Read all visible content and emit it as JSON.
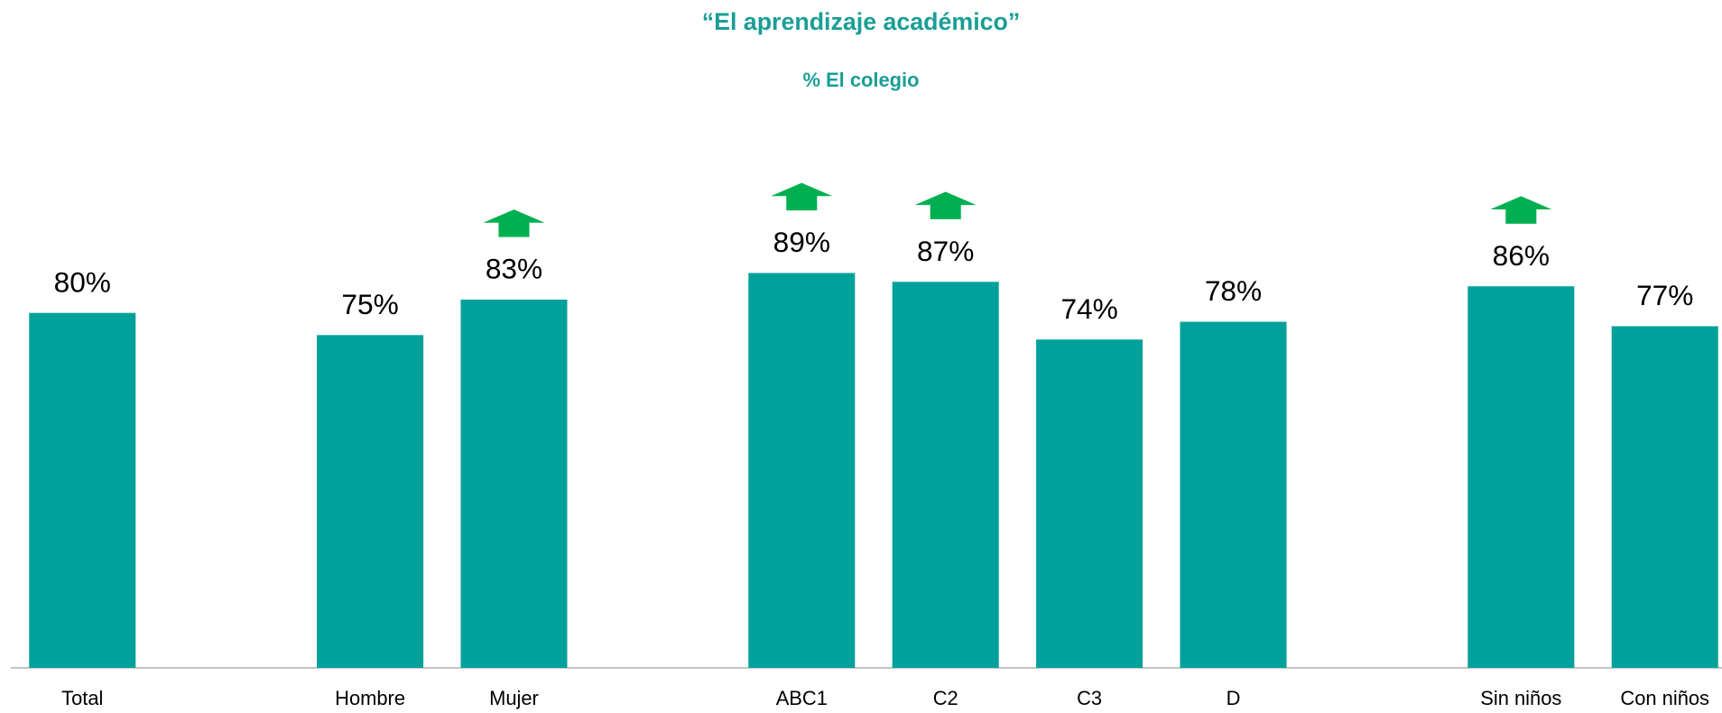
{
  "chart_data": {
    "type": "bar",
    "title": "“El aprendizaje académico”",
    "subtitle": "% El colegio",
    "categories": [
      "Total",
      null,
      "Hombre",
      "Mujer",
      null,
      "ABC1",
      "C2",
      "C3",
      "D",
      null,
      "Sin niños",
      "Con niños"
    ],
    "values": [
      80,
      null,
      75,
      83,
      null,
      89,
      87,
      74,
      78,
      null,
      86,
      77
    ],
    "value_labels": [
      "80%",
      null,
      "75%",
      "83%",
      null,
      "89%",
      "87%",
      "74%",
      "78%",
      null,
      "86%",
      "77%"
    ],
    "arrow_up": [
      false,
      null,
      false,
      true,
      null,
      true,
      true,
      false,
      false,
      null,
      true,
      false
    ],
    "color": "#00a19a",
    "arrow_color": "#00b050",
    "title_color": "#1a9e96",
    "ylim": [
      0,
      100
    ]
  }
}
